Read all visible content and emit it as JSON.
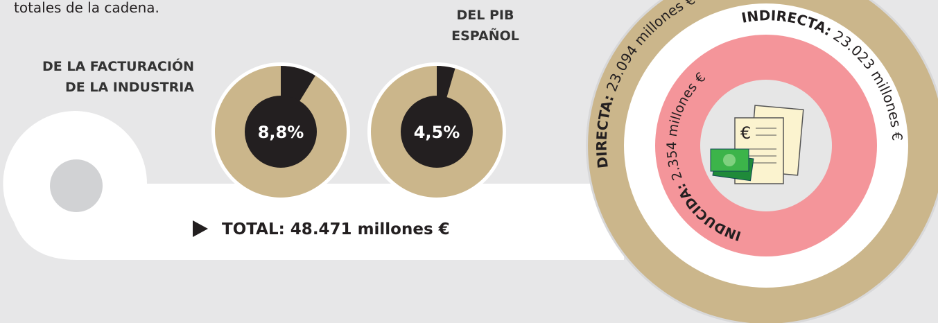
{
  "intro": "totales de la cadena.",
  "donuts": [
    {
      "label_lines": [
        "DE LA FACTURACIÓN",
        "DE LA INDUSTRIA"
      ],
      "value": 8.8,
      "value_label": "8,8%"
    },
    {
      "label_lines": [
        "DEL PIB",
        "ESPAÑOL"
      ],
      "value": 4.5,
      "value_label": "4,5%"
    }
  ],
  "total": "TOTAL: 48.471 millones €",
  "rings": [
    {
      "name": "DIRECTA:",
      "amount": "23.094 millones €"
    },
    {
      "name": "INDIRECTA:",
      "amount": "23.023 millones €"
    },
    {
      "name": "INDUCIDA:",
      "amount": "2.354 millones €"
    }
  ]
}
